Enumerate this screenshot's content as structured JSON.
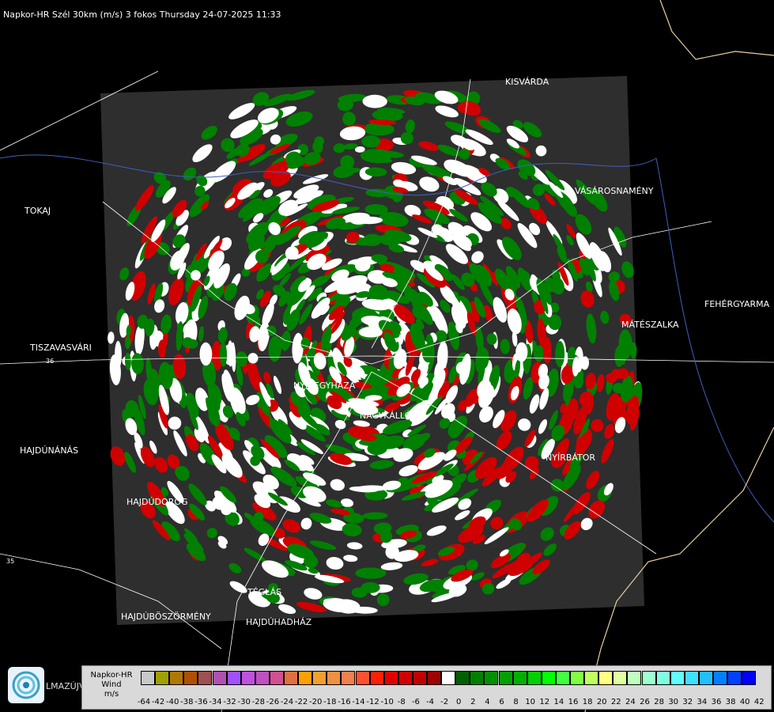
{
  "header": {
    "title": "Napkor-HR Szél 30km (m/s) 3 fokos Thursday 24-07-2025 11:33"
  },
  "cities": [
    {
      "name": "KISVÁRDA"
    },
    {
      "name": "TOKAJ"
    },
    {
      "name": "VÁSÁROSNAMÉNY"
    },
    {
      "name": "FEHÉRGYARMA"
    },
    {
      "name": "MÁTÉSZALKA"
    },
    {
      "name": "TISZAVASVÁRI"
    },
    {
      "name": "NYÍREGYHÁZA"
    },
    {
      "name": "NAGYKÁLLÓ"
    },
    {
      "name": "HAJDÚNÁNÁS"
    },
    {
      "name": "NYÍRBÁTOR"
    },
    {
      "name": "HAJDÚDOROG"
    },
    {
      "name": "TÉGLÁS"
    },
    {
      "name": "HAJDÚBÖSZÖRMÉNY"
    },
    {
      "name": "HAJDÚHADHÁZ"
    }
  ],
  "roads": [
    {
      "label": "36"
    },
    {
      "label": "35"
    }
  ],
  "branding": {
    "logo": "swirl-logo-icon",
    "text": "LMAZÚJVÁR"
  },
  "legend": {
    "title": [
      "Napkor-HR",
      "Wind",
      "m/s"
    ],
    "ticks": [
      "-64",
      "-42",
      "-40",
      "-38",
      "-36",
      "-34",
      "-32",
      "-30",
      "-28",
      "-26",
      "-24",
      "-22",
      "-20",
      "-18",
      "-16",
      "-14",
      "-12",
      "-10",
      "-8",
      "-6",
      "-4",
      "-2",
      "0",
      "2",
      "4",
      "6",
      "8",
      "10",
      "12",
      "14",
      "16",
      "18",
      "20",
      "22",
      "24",
      "26",
      "28",
      "30",
      "32",
      "34",
      "36",
      "38",
      "40",
      "42"
    ],
    "colors": [
      "#c8c8c8",
      "#a0a000",
      "#b07800",
      "#b05000",
      "#a05050",
      "#b050b0",
      "#a050ff",
      "#c050e0",
      "#c050c0",
      "#d05090",
      "#e07040",
      "#ffa000",
      "#f0a030",
      "#f09040",
      "#f08050",
      "#ff5030",
      "#ff2000",
      "#e00000",
      "#d00000",
      "#c00000",
      "#a00000",
      "#ffffff",
      "#006000",
      "#008000",
      "#009000",
      "#00a000",
      "#00b000",
      "#00d000",
      "#00ff00",
      "#40ff40",
      "#80ff40",
      "#c0ff60",
      "#ffff80",
      "#e0ffa0",
      "#c0ffc0",
      "#a0ffd0",
      "#80ffe0",
      "#60ffff",
      "#40e0ff",
      "#20c0ff",
      "#0080ff",
      "#0040ff",
      "#0000ff"
    ]
  },
  "colors": {
    "radar_bg": "#2e2e2e",
    "advancing": "#d00000",
    "receding": "#008000",
    "zero": "#ffffff"
  }
}
